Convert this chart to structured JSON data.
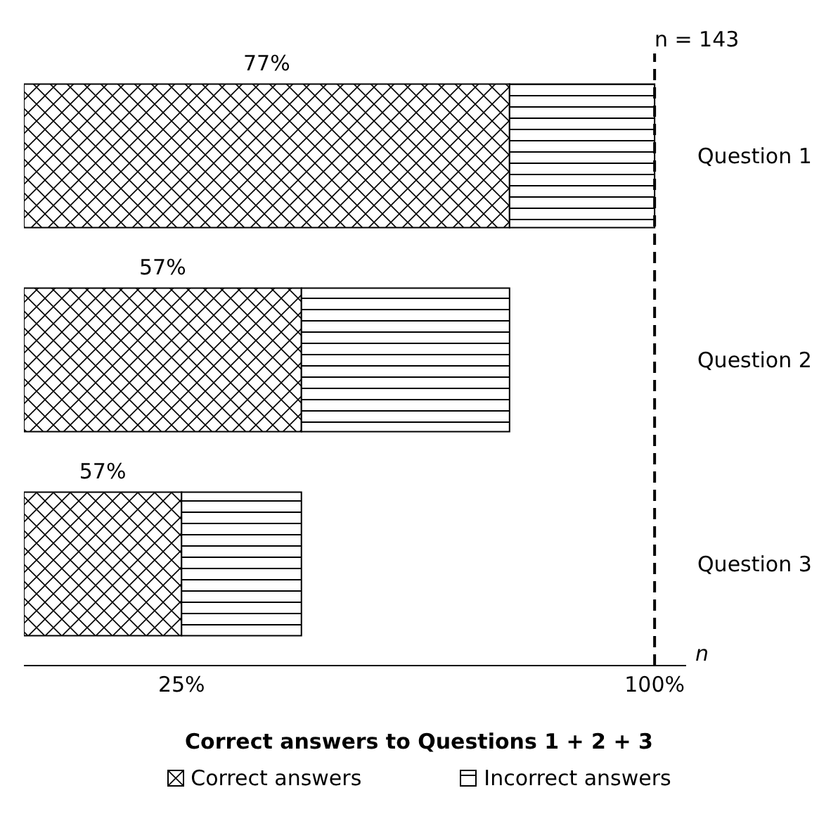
{
  "chart_data": {
    "type": "bar",
    "orientation": "horizontal",
    "stacked": true,
    "title": "Correct answers to Questions 1 + 2 + 3",
    "xlabel": "n",
    "categories": [
      "Question 1",
      "Question 2",
      "Question 3"
    ],
    "series": [
      {
        "name": "Correct answers",
        "color": "#000000",
        "values": [
          77,
          44,
          25
        ]
      },
      {
        "name": "Incorrect answers",
        "color": "#000000",
        "values": [
          23,
          33,
          19
        ]
      }
    ],
    "xlim": [
      0,
      105
    ],
    "xticks": [
      {
        "value": 25,
        "label": "25%"
      },
      {
        "value": 100,
        "label": "100%"
      }
    ],
    "ref_lines": [
      {
        "axis": "x",
        "value": 100,
        "line_style": "dashed",
        "color": "#000000"
      }
    ],
    "annotations": [
      "77%",
      "57%",
      "57%",
      "n = 143"
    ],
    "legend": "bottom",
    "grid": false
  }
}
